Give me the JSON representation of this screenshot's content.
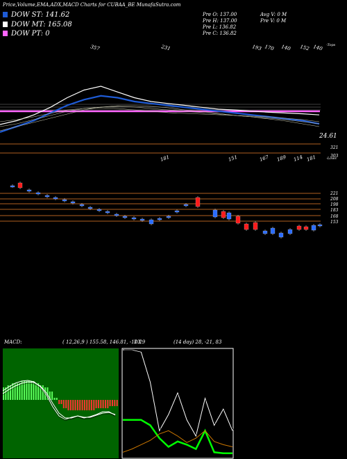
{
  "header": {
    "title": "Price,Volume,EMA,ADX,MACD Charts for CUBAA_BE MunafaSutra.com"
  },
  "legend": [
    {
      "label": "DOW ST: 141.62",
      "color": "#1e5bd6"
    },
    {
      "label": "DOW MT: 165.08",
      "color": "#ffffff"
    },
    {
      "label": "DOW PT: 0",
      "color": "#ff66ff"
    }
  ],
  "info": {
    "o": "Pre   O: 137.00",
    "h": "Pre   H: 137.00",
    "l": "Pre   L: 136.82",
    "c": "Pre   C: 136.82",
    "avgv": "Avg V: 0   M",
    "prev": "Pre   V: 0   M"
  },
  "ema_panel": {
    "top_labels": [
      "357",
      "231",
      "193",
      "170",
      "140",
      "152",
      "140"
    ],
    "top_right": "-Tops",
    "bottom_labels": [
      "181",
      "151",
      "167",
      "189",
      "114",
      "181"
    ],
    "bottom_right": "-Lows",
    "value_label": "24.61",
    "levels": [
      "321",
      "303"
    ]
  },
  "candle_panel": {
    "levels": [
      "221",
      "208",
      "198",
      "183",
      "168",
      "153"
    ]
  },
  "macd": {
    "label": "MACD:",
    "params": "( 12,26,9 ) 155.58,  146.81,  -11.29",
    "adx_label": "DX",
    "adx_params": "(14 day) 28,  -21,  83"
  },
  "chart_data": [
    {
      "type": "line",
      "title": "",
      "series": [
        {
          "name": "DOW PT",
          "color": "#ff66ff",
          "values": [
            0,
            0,
            0,
            0,
            0,
            0,
            0,
            0,
            0,
            0,
            0,
            0,
            0,
            0,
            0,
            0,
            0,
            0,
            0,
            0
          ]
        },
        {
          "name": "DOW ST",
          "color": "#1e5bd6",
          "values": [
            120,
            135,
            150,
            170,
            190,
            205,
            215,
            210,
            200,
            195,
            190,
            185,
            180,
            175,
            170,
            165,
            160,
            155,
            150,
            141.62
          ]
        },
        {
          "name": "DOW MT",
          "color": "#ffffff",
          "values": [
            140,
            150,
            165,
            185,
            210,
            230,
            240,
            225,
            210,
            200,
            195,
            190,
            185,
            180,
            178,
            175,
            172,
            170,
            168,
            165.08
          ]
        }
      ]
    },
    {
      "type": "bar",
      "title": "MACD",
      "values": [
        6,
        7,
        8,
        8,
        9,
        9,
        9,
        8,
        7,
        6,
        4,
        1,
        -2,
        -4,
        -5,
        -5,
        -5,
        -5,
        -5,
        -5,
        -4,
        -4,
        -4,
        -3,
        -3
      ]
    },
    {
      "type": "line",
      "title": "DX",
      "series": [
        {
          "name": "",
          "color": "#ffffff",
          "values": [
            100,
            100,
            98,
            70,
            25,
            40,
            60,
            35,
            20,
            55,
            30,
            45,
            25
          ]
        },
        {
          "name": "",
          "color": "#00ff00",
          "values": [
            35,
            35,
            35,
            30,
            18,
            10,
            15,
            12,
            8,
            25,
            5,
            4,
            4
          ]
        },
        {
          "name": "",
          "color": "#cc7700",
          "values": [
            5,
            8,
            12,
            16,
            22,
            25,
            20,
            14,
            18,
            25,
            15,
            12,
            10
          ]
        }
      ]
    }
  ]
}
